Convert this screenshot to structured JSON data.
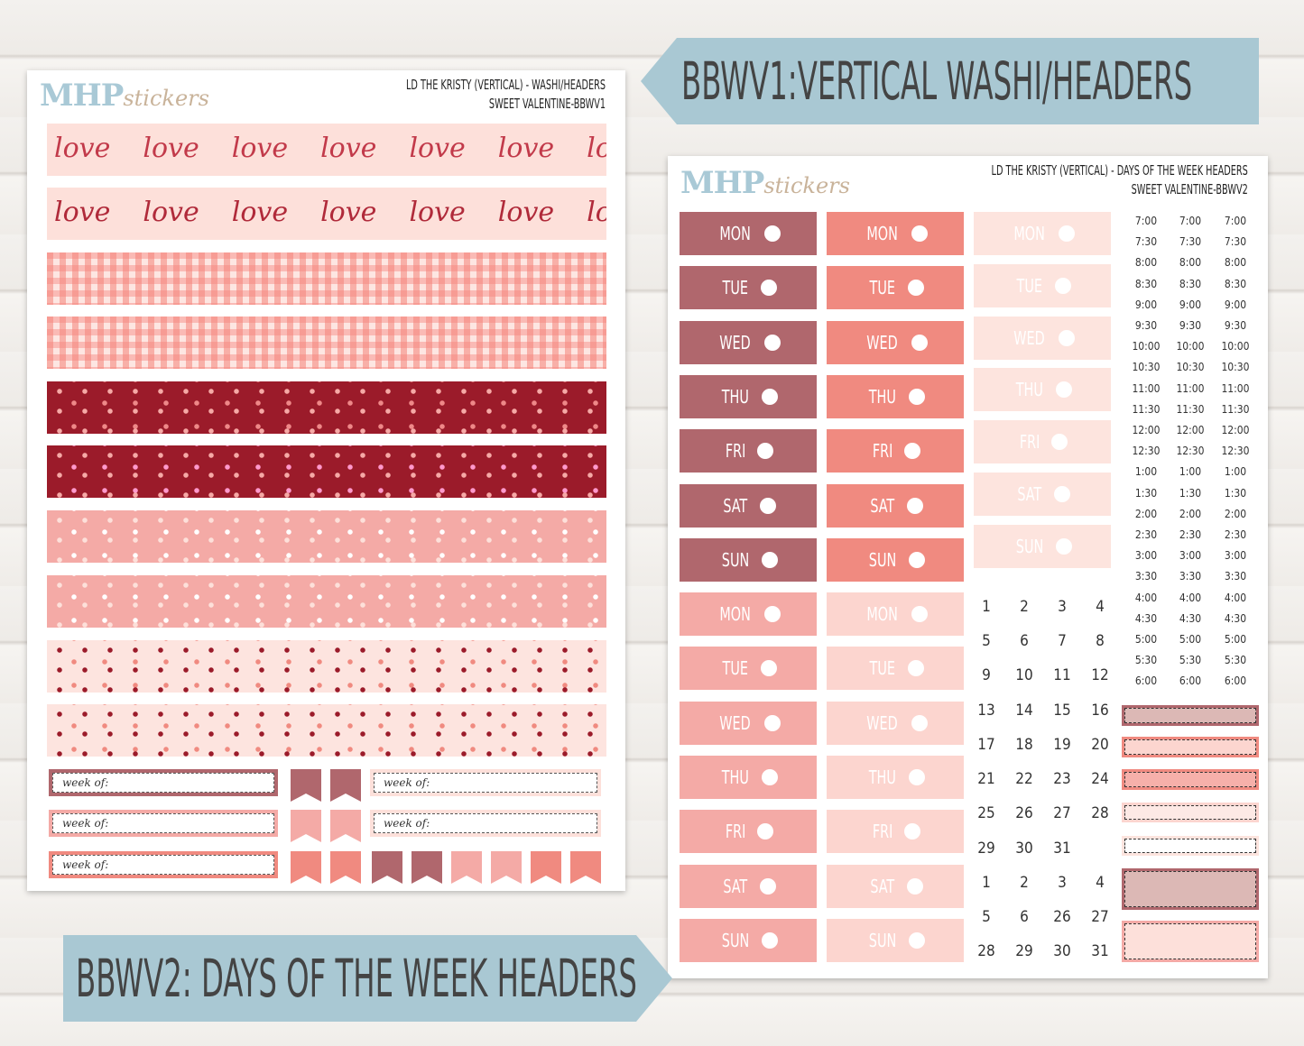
{
  "banners": {
    "top": "BBWV1:VERTICAL WASHI/HEADERS",
    "bottom": "BBWV2: DAYS OF THE WEEK HEADERS"
  },
  "sheet1": {
    "logo_main": "MHP",
    "logo_script": "stickers",
    "title_line1": "LD THE KRISTY (VERTICAL) - WASHI/HEADERS",
    "title_line2": "SWEET VALENTINE-BBWV1",
    "washi_text": "love",
    "week_of": "week of:",
    "colors": {
      "dark_rose": "#b0676d",
      "salmon": "#f08a80",
      "pink": "#f4aaa6",
      "blush": "#fde0da",
      "burgundy": "#9b1b2a"
    }
  },
  "sheet2": {
    "logo_main": "MHP",
    "logo_script": "stickers",
    "title_line1": "LD THE KRISTY (VERTICAL) - DAYS OF THE WEEK HEADERS",
    "title_line2": "SWEET VALENTINE-BBWV2",
    "days": [
      "MON",
      "TUE",
      "WED",
      "THU",
      "FRI",
      "SAT",
      "SUN"
    ],
    "numbers": [
      "1",
      "2",
      "3",
      "4",
      "5",
      "6",
      "7",
      "8",
      "9",
      "10",
      "11",
      "12",
      "13",
      "14",
      "15",
      "16",
      "17",
      "18",
      "19",
      "20",
      "21",
      "22",
      "23",
      "24",
      "25",
      "26",
      "27",
      "28",
      "29",
      "30",
      "31",
      "1",
      "2",
      "3",
      "4",
      "5",
      "6",
      "26",
      "27",
      "28",
      "29",
      "30",
      "31"
    ],
    "times": [
      "7:00",
      "7:30",
      "8:00",
      "8:30",
      "9:00",
      "9:30",
      "10:00",
      "10:30",
      "11:00",
      "11:30",
      "12:00",
      "12:30",
      "1:00",
      "1:30",
      "2:00",
      "2:30",
      "3:00",
      "3:30",
      "4:00",
      "4:30",
      "5:00",
      "5:30",
      "6:00"
    ]
  }
}
